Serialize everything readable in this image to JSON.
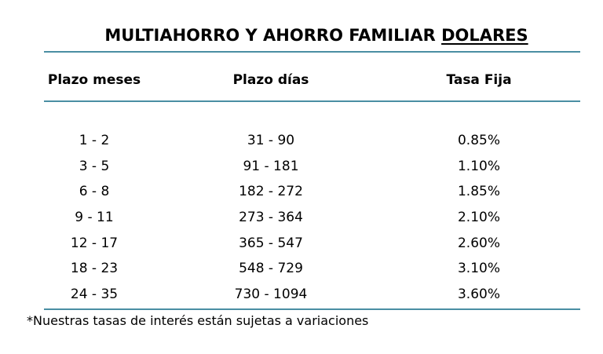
{
  "title": {
    "prefix": "MULTIAHORRO Y AHORRO FAMILIAR ",
    "underlined": "DOLARES"
  },
  "headers": {
    "months": "Plazo meses",
    "days": "Plazo días",
    "rate": "Tasa Fija"
  },
  "rows": [
    {
      "months": "1 - 2",
      "days": "31 - 90",
      "rate": "0.85%"
    },
    {
      "months": "3 - 5",
      "days": "91 - 181",
      "rate": "1.10%"
    },
    {
      "months": "6 - 8",
      "days": "182 - 272",
      "rate": "1.85%"
    },
    {
      "months": "9 - 11",
      "days": "273 - 364",
      "rate": "2.10%"
    },
    {
      "months": "12 - 17",
      "days": "365 - 547",
      "rate": "2.60%"
    },
    {
      "months": "18 - 23",
      "days": "548 - 729",
      "rate": "3.10%"
    },
    {
      "months": "24 - 35",
      "days": "730 - 1094",
      "rate": "3.60%"
    }
  ],
  "footnote": "*Nuestras tasas de interés están sujetas a variaciones",
  "colors": {
    "rule": "#4a8ea3"
  }
}
